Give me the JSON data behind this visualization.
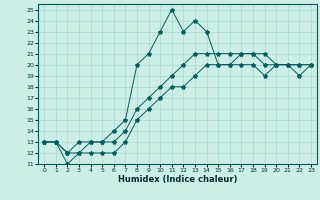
{
  "xlabel": "Humidex (Indice chaleur)",
  "ylabel": "",
  "xlim": [
    -0.5,
    23.5
  ],
  "ylim": [
    11,
    25.5
  ],
  "yticks": [
    11,
    12,
    13,
    14,
    15,
    16,
    17,
    18,
    19,
    20,
    21,
    22,
    23,
    24,
    25
  ],
  "xticks": [
    0,
    1,
    2,
    3,
    4,
    5,
    6,
    7,
    8,
    9,
    10,
    11,
    12,
    13,
    14,
    15,
    16,
    17,
    18,
    19,
    20,
    21,
    22,
    23
  ],
  "bg_color": "#cceee4",
  "line_color": "#005f5f",
  "grid_color": "#aad8cc",
  "series": [
    {
      "x": [
        0,
        1,
        2,
        3,
        4,
        5,
        6,
        7,
        8,
        9,
        10,
        11,
        12,
        13,
        14,
        15,
        16,
        17,
        18,
        19,
        20,
        21,
        22,
        23
      ],
      "y": [
        13,
        13,
        12,
        13,
        13,
        13,
        14,
        15,
        20,
        21,
        23,
        25,
        23,
        24,
        23,
        20,
        20,
        20,
        20,
        19,
        20,
        20,
        19,
        20
      ]
    },
    {
      "x": [
        0,
        1,
        2,
        3,
        4,
        5,
        6,
        7,
        8,
        9,
        10,
        11,
        12,
        13,
        14,
        15,
        16,
        17,
        18,
        19,
        20,
        21,
        22,
        23
      ],
      "y": [
        13,
        13,
        12,
        12,
        13,
        13,
        13,
        14,
        16,
        17,
        18,
        19,
        20,
        21,
        21,
        21,
        21,
        21,
        21,
        21,
        20,
        20,
        20,
        20
      ]
    },
    {
      "x": [
        0,
        1,
        2,
        3,
        4,
        5,
        6,
        7,
        8,
        9,
        10,
        11,
        12,
        13,
        14,
        15,
        16,
        17,
        18,
        19,
        20,
        21,
        22,
        23
      ],
      "y": [
        13,
        13,
        11,
        12,
        12,
        12,
        12,
        13,
        15,
        16,
        17,
        18,
        18,
        19,
        20,
        20,
        20,
        21,
        21,
        20,
        20,
        20,
        20,
        20
      ]
    }
  ]
}
